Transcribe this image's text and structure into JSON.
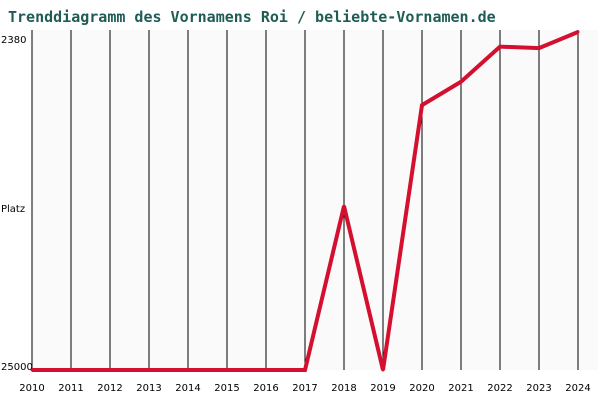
{
  "chart_data": {
    "type": "line",
    "title": "Trenddiagramm des Vornamens Roi / beliebte-Vornamen.de",
    "xlabel": "",
    "ylabel": "Platz",
    "x": [
      2010,
      2011,
      2012,
      2013,
      2014,
      2015,
      2016,
      2017,
      2018,
      2019,
      2020,
      2021,
      2022,
      2023,
      2024
    ],
    "y_ticks": [
      "2380",
      "25000"
    ],
    "ylim": [
      25000,
      2380
    ],
    "y_scale": "rank, inverted (top = better)",
    "grid": {
      "vertical": true,
      "horizontal": false
    },
    "series": [
      {
        "name": "",
        "color": "#d40f2f",
        "values": [
          25000,
          25000,
          25000,
          25000,
          25000,
          25000,
          25000,
          25000,
          13800,
          25000,
          6900,
          5300,
          2900,
          3000,
          1900
        ]
      }
    ]
  }
}
